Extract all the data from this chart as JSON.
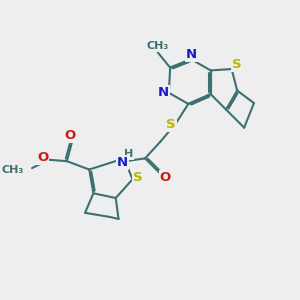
{
  "bg_color": "#eeeeee",
  "bond_color": "#3d7070",
  "bond_width": 1.5,
  "dbo": 0.06,
  "atom_colors": {
    "S": "#b8b800",
    "N": "#1a1acc",
    "O": "#cc1a1a",
    "H": "#3d7070",
    "C": "#3d7070"
  },
  "fs": 9.5
}
